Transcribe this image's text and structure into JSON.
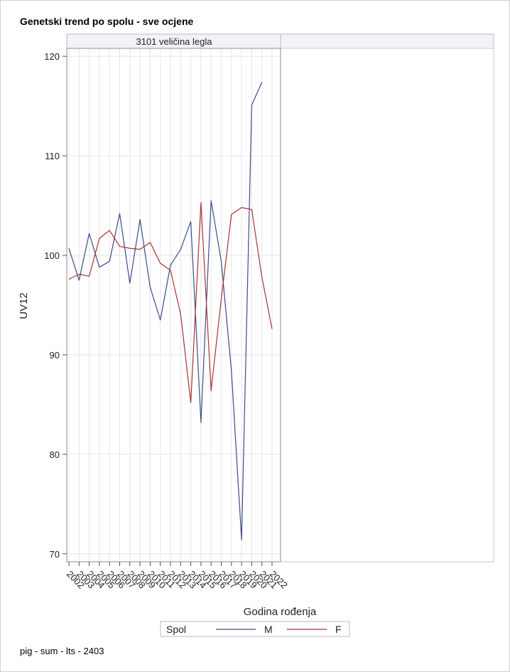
{
  "page": {
    "title": "Genetski trend po spolu - sve ocjene",
    "footer": "pig - sum - lts - 2403"
  },
  "chart_data": {
    "type": "line",
    "title": "Genetski trend po spolu - sve ocjene",
    "panel_label": "3101 veličina legla",
    "xlabel": "Godina rođenja",
    "ylabel": "UV12",
    "ylim": [
      69.2,
      120.8
    ],
    "yticks": [
      70,
      80,
      90,
      100,
      110,
      120
    ],
    "x": [
      2002,
      2003,
      2004,
      2005,
      2006,
      2007,
      2008,
      2009,
      2010,
      2011,
      2012,
      2013,
      2014,
      2015,
      2016,
      2017,
      2018,
      2019,
      2020,
      2021,
      2022
    ],
    "grid": true,
    "legend": {
      "title": "Spol",
      "placement": "bottom"
    },
    "series": [
      {
        "name": "M",
        "color": "#3b4a8a",
        "values": [
          100.7,
          97.5,
          102.2,
          98.8,
          99.4,
          104.2,
          97.2,
          103.6,
          96.8,
          93.5,
          99.0,
          100.6,
          103.4,
          83.2,
          105.5,
          99.4,
          88.4,
          71.4,
          115.1,
          117.4,
          null
        ]
      },
      {
        "name": "F",
        "color": "#a83232",
        "values": [
          97.6,
          98.1,
          97.9,
          101.7,
          102.5,
          100.9,
          100.7,
          100.6,
          101.3,
          99.2,
          98.5,
          94.1,
          85.2,
          105.3,
          86.4,
          95.6,
          104.1,
          104.8,
          104.6,
          97.8,
          92.6
        ]
      }
    ]
  }
}
